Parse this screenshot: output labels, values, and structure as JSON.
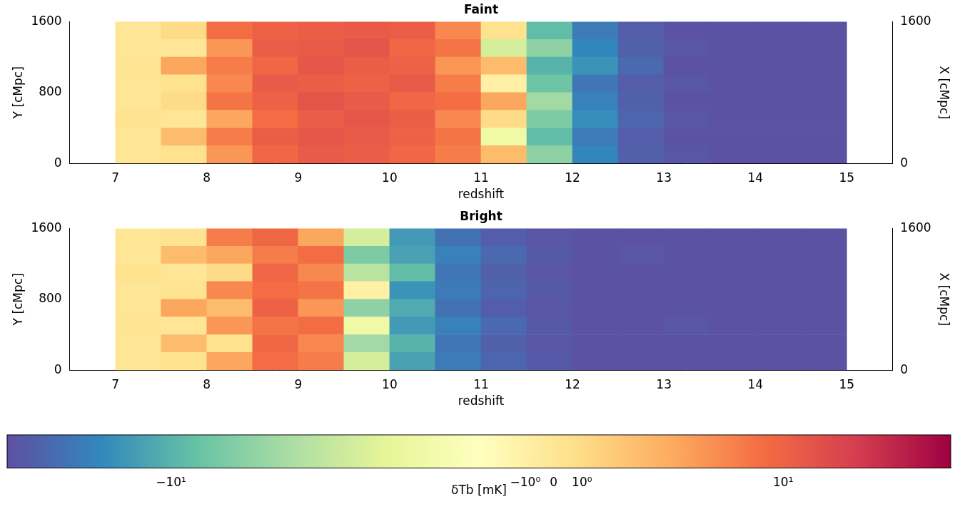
{
  "chart_data": [
    {
      "type": "heatmap",
      "title": "Faint",
      "x_label": "redshift",
      "y_label": "Y [cMpc]",
      "y2_label": "X [cMpc]",
      "xlim": [
        6.5,
        15.5
      ],
      "xticks": [
        7,
        8,
        9,
        10,
        11,
        12,
        13,
        14,
        15
      ],
      "ylim": [
        0,
        1600
      ],
      "yticks": [
        0,
        800,
        1600
      ],
      "y2lim": [
        0,
        1600
      ],
      "y2ticks": [
        0,
        1600
      ],
      "x_edges": [
        7,
        7.5,
        8,
        8.5,
        9,
        9.5,
        10,
        10.5,
        11,
        11.5,
        12,
        12.5,
        13,
        13.5,
        14,
        14.5,
        15
      ],
      "y_edges": [
        0,
        200,
        400,
        600,
        800,
        1000,
        1200,
        1400,
        1600
      ],
      "cells": [
        [
          0,
          0.5,
          4,
          9,
          12,
          11,
          9,
          6,
          2,
          -6,
          -16,
          -24,
          -27,
          -28,
          -28,
          -28
        ],
        [
          0,
          2,
          6,
          11,
          13,
          12,
          10,
          7,
          -2,
          -9,
          -18,
          -25,
          -28,
          -28,
          -28,
          -28
        ],
        [
          0.3,
          0,
          3,
          8,
          11,
          13,
          11,
          5,
          1,
          -7,
          -15,
          -23,
          -27,
          -28,
          -28,
          -28
        ],
        [
          0,
          1,
          7,
          10,
          14,
          12,
          9,
          8,
          3,
          -5,
          -17,
          -24,
          -28,
          -28,
          -28,
          -28
        ],
        [
          0,
          0.5,
          5,
          12,
          11,
          10,
          12,
          6,
          -1,
          -8,
          -19,
          -25,
          -27,
          -28,
          -28,
          -28
        ],
        [
          0.2,
          3,
          6,
          9,
          13,
          11,
          10,
          4,
          2,
          -10,
          -14,
          -22,
          -28,
          -28,
          -28,
          -28
        ],
        [
          0,
          0,
          4,
          11,
          12,
          14,
          9,
          7,
          -3,
          -6,
          -16,
          -24,
          -27,
          -28,
          -28,
          -28
        ],
        [
          0,
          1,
          8,
          10,
          11,
          12,
          11,
          5,
          0.5,
          -9,
          -18,
          -25,
          -28,
          -28,
          -28,
          -28
        ]
      ]
    },
    {
      "type": "heatmap",
      "title": "Bright",
      "x_label": "redshift",
      "y_label": "Y [cMpc]",
      "y2_label": "X [cMpc]",
      "xlim": [
        6.5,
        15.5
      ],
      "xticks": [
        7,
        8,
        9,
        10,
        11,
        12,
        13,
        14,
        15
      ],
      "ylim": [
        0,
        1600
      ],
      "yticks": [
        0,
        800,
        1600
      ],
      "y2lim": [
        0,
        1600
      ],
      "y2ticks": [
        0,
        1600
      ],
      "x_edges": [
        7,
        7.5,
        8,
        8.5,
        9,
        9.5,
        10,
        10.5,
        11,
        11.5,
        12,
        12.5,
        13,
        13.5,
        14,
        14.5,
        15
      ],
      "y_edges": [
        0,
        200,
        400,
        600,
        800,
        1000,
        1200,
        1400,
        1600
      ],
      "cells": [
        [
          0,
          0.5,
          3,
          8,
          6,
          -3,
          -12,
          -18,
          -23,
          -26,
          -28,
          -28,
          -28,
          -28,
          -28,
          -28
        ],
        [
          0,
          2,
          0.5,
          9,
          5,
          -5,
          -10,
          -19,
          -24,
          -27,
          -28,
          -28,
          -28,
          -28,
          -28,
          -28
        ],
        [
          0.2,
          0,
          4,
          7,
          8,
          -2,
          -13,
          -17,
          -22,
          -26,
          -28,
          -28,
          -27,
          -28,
          -28,
          -28
        ],
        [
          0,
          3,
          2,
          10,
          4,
          -6,
          -11,
          -20,
          -25,
          -27,
          -28,
          -28,
          -28,
          -28,
          -28,
          -28
        ],
        [
          0,
          0.3,
          5,
          8,
          7,
          -1,
          -14,
          -18,
          -23,
          -26,
          -28,
          -28,
          -28,
          -28,
          -28,
          -28
        ],
        [
          0.5,
          0,
          1,
          9,
          5,
          -4,
          -9,
          -19,
          -24,
          -27,
          -28,
          -28,
          -28,
          -28,
          -28,
          -28
        ],
        [
          0,
          2,
          3,
          6,
          8,
          -7,
          -12,
          -17,
          -22,
          -26,
          -28,
          -27,
          -28,
          -28,
          -28,
          -28
        ],
        [
          0,
          0.4,
          6,
          9,
          3,
          -3,
          -13,
          -20,
          -25,
          -27,
          -28,
          -28,
          -28,
          -28,
          -28,
          -28
        ]
      ]
    }
  ],
  "colorbar": {
    "label": "δTb [mK]",
    "range": [
      -29,
      68
    ],
    "ticks": [
      {
        "value": -10,
        "label": "−10¹"
      },
      {
        "value": -1,
        "label": "−10⁰"
      },
      0,
      {
        "value": 1,
        "label": "10⁰"
      },
      {
        "value": 10,
        "label": "10¹"
      }
    ]
  }
}
